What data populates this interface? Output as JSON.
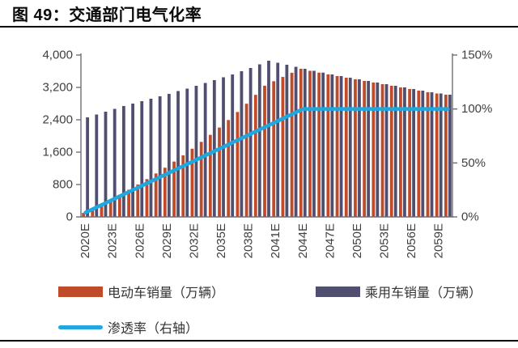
{
  "page": {
    "title": "图 49：交通部门电气化率"
  },
  "chart_data": {
    "type": "combo-bar-line",
    "x": [
      2020,
      2021,
      2022,
      2023,
      2024,
      2025,
      2026,
      2027,
      2028,
      2029,
      2030,
      2031,
      2032,
      2033,
      2034,
      2035,
      2036,
      2037,
      2038,
      2039,
      2040,
      2041,
      2042,
      2043,
      2044,
      2045,
      2046,
      2047,
      2048,
      2049,
      2050,
      2051,
      2052,
      2053,
      2054,
      2055,
      2056,
      2057,
      2058,
      2059,
      2060
    ],
    "x_tick_labels": [
      "2020E",
      "2023E",
      "2026E",
      "2029E",
      "2032E",
      "2035E",
      "2038E",
      "2041E",
      "2044E",
      "2047E",
      "2050E",
      "2053E",
      "2056E",
      "2059E"
    ],
    "x_tick_step": 3,
    "series": [
      {
        "name": "电动车销量（万辆）",
        "type": "bar",
        "color": "#BF4B2B",
        "axis": "left",
        "values": [
          98,
          202,
          312,
          427,
          548,
          672,
          801,
          934,
          1073,
          1216,
          1368,
          1522,
          1685,
          1854,
          2028,
          2208,
          2394,
          2592,
          2797,
          3016,
          3242,
          3353,
          3459,
          3562,
          3660,
          3610,
          3565,
          3520,
          3480,
          3440,
          3400,
          3360,
          3320,
          3280,
          3240,
          3200,
          3160,
          3120,
          3080,
          3050,
          3020
        ]
      },
      {
        "name": "乘用车销量（万辆）",
        "type": "bar",
        "color": "#504F6F",
        "axis": "left",
        "values": [
          2460,
          2530,
          2600,
          2670,
          2740,
          2800,
          2860,
          2920,
          2980,
          3040,
          3110,
          3170,
          3240,
          3310,
          3380,
          3450,
          3520,
          3600,
          3680,
          3770,
          3860,
          3810,
          3760,
          3710,
          3660,
          3610,
          3565,
          3520,
          3480,
          3440,
          3400,
          3360,
          3320,
          3280,
          3240,
          3200,
          3160,
          3120,
          3080,
          3050,
          3020
        ]
      },
      {
        "name": "渗透率（右轴）",
        "type": "line",
        "color": "#1FA8E0",
        "axis": "right",
        "values_percent": [
          4,
          8,
          12,
          16,
          20,
          24,
          28,
          32,
          36,
          40,
          44,
          48,
          52,
          56,
          60,
          64,
          68,
          72,
          76,
          80,
          84,
          88,
          92,
          96,
          100,
          100,
          100,
          100,
          100,
          100,
          100,
          100,
          100,
          100,
          100,
          100,
          100,
          100,
          100,
          100,
          100
        ]
      }
    ],
    "left_axis": {
      "min": 0,
      "max": 4000,
      "tick_labels": [
        "4,000",
        "3,200",
        "2,400",
        "1,600",
        "800",
        "0"
      ]
    },
    "right_axis": {
      "min": 0,
      "max": 150,
      "tick_labels": [
        "150%",
        "100%",
        "50%",
        "0%"
      ]
    },
    "grid": false,
    "legend_position": "bottom"
  },
  "style": {
    "axis_line_color": "#6e6e78",
    "tick_label_color": "#3f3f3f"
  }
}
